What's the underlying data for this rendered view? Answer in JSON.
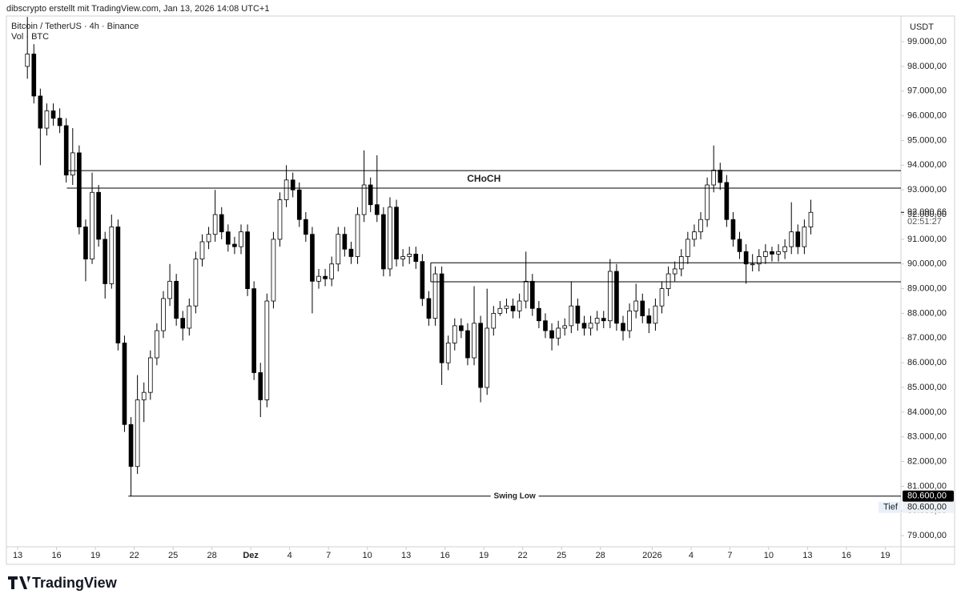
{
  "header": {
    "caption": "dibscrypto erstellt mit TradingView.com, Jan 13, 2026 14:08 UTC+1",
    "symbol": "Bitcoin / TetherUS · 4h · Binance",
    "volume": "Vol · BTC",
    "brand": "TradingView"
  },
  "chart_data": {
    "type": "candlestick",
    "currency": "USDT",
    "up_color": "#ffffff",
    "down_color": "#000000",
    "wick_color": "#000000",
    "grid": false,
    "xlim": [
      -0.87,
      68.21
    ],
    "ylim": [
      78550,
      100040
    ],
    "xticks": [
      {
        "value": 0,
        "label": "13"
      },
      {
        "value": 3,
        "label": "16"
      },
      {
        "value": 6,
        "label": "19"
      },
      {
        "value": 9,
        "label": "22"
      },
      {
        "value": 12,
        "label": "25"
      },
      {
        "value": 15,
        "label": "28"
      },
      {
        "value": 18,
        "label": "Dez"
      },
      {
        "value": 21,
        "label": "4"
      },
      {
        "value": 24,
        "label": "7"
      },
      {
        "value": 27,
        "label": "10"
      },
      {
        "value": 30,
        "label": "13"
      },
      {
        "value": 33,
        "label": "16"
      },
      {
        "value": 36,
        "label": "19"
      },
      {
        "value": 39,
        "label": "22"
      },
      {
        "value": 42,
        "label": "25"
      },
      {
        "value": 45,
        "label": "28"
      },
      {
        "value": 49,
        "label": "2026"
      },
      {
        "value": 52,
        "label": "4"
      },
      {
        "value": 55,
        "label": "7"
      },
      {
        "value": 58,
        "label": "10"
      },
      {
        "value": 61,
        "label": "13"
      },
      {
        "value": 64,
        "label": "16"
      },
      {
        "value": 67,
        "label": "19"
      }
    ],
    "yticks": [
      {
        "value": 79000,
        "label": "79.000,00"
      },
      {
        "value": 80000,
        "label": "80.000,00"
      },
      {
        "value": 81000,
        "label": "81.000,00"
      },
      {
        "value": 82000,
        "label": "82.000,00"
      },
      {
        "value": 83000,
        "label": "83.000,00"
      },
      {
        "value": 84000,
        "label": "84.000,00"
      },
      {
        "value": 85000,
        "label": "85.000,00"
      },
      {
        "value": 86000,
        "label": "86.000,00"
      },
      {
        "value": 87000,
        "label": "87.000,00"
      },
      {
        "value": 88000,
        "label": "88.000,00"
      },
      {
        "value": 89000,
        "label": "89.000,00"
      },
      {
        "value": 90000,
        "label": "90.000,00"
      },
      {
        "value": 91000,
        "label": "91.000,00"
      },
      {
        "value": 92000,
        "label": "92.000,00"
      },
      {
        "value": 93000,
        "label": "93.000,00"
      },
      {
        "value": 94000,
        "label": "94.000,00"
      },
      {
        "value": 95000,
        "label": "95.000,00"
      },
      {
        "value": 96000,
        "label": "96.000,00"
      },
      {
        "value": 97000,
        "label": "97.000,00"
      },
      {
        "value": 98000,
        "label": "98.000,00"
      },
      {
        "value": 99000,
        "label": "99.000,00"
      }
    ],
    "x": [
      0.75,
      1.25,
      1.75,
      2.25,
      2.75,
      3.25,
      3.75,
      4.25,
      4.75,
      5.25,
      5.75,
      6.25,
      6.75,
      7.25,
      7.75,
      8.25,
      8.75,
      9.25,
      9.75,
      10.25,
      10.75,
      11.25,
      11.75,
      12.25,
      12.75,
      13.25,
      13.75,
      14.25,
      14.75,
      15.25,
      15.75,
      16.25,
      16.75,
      17.25,
      17.75,
      18.25,
      18.75,
      19.25,
      19.75,
      20.25,
      20.75,
      21.25,
      21.75,
      22.25,
      22.75,
      23.25,
      23.75,
      24.25,
      24.75,
      25.25,
      25.75,
      26.25,
      26.75,
      27.25,
      27.75,
      28.25,
      28.75,
      29.25,
      29.75,
      30.25,
      30.75,
      31.25,
      31.75,
      32.25,
      32.75,
      33.25,
      33.75,
      34.25,
      34.75,
      35.25,
      35.75,
      36.25,
      36.75,
      37.25,
      37.75,
      38.25,
      38.75,
      39.25,
      39.75,
      40.25,
      40.75,
      41.25,
      41.75,
      42.25,
      42.75,
      43.25,
      43.75,
      44.25,
      44.75,
      45.25,
      45.75,
      46.25,
      46.75,
      47.25,
      47.75,
      48.25,
      48.75,
      49.25,
      49.75,
      50.25,
      50.75,
      51.25,
      51.75,
      52.25,
      52.75,
      53.25,
      53.75,
      54.25,
      54.75,
      55.25,
      55.75,
      56.25,
      56.75,
      57.25,
      57.75,
      58.25,
      58.75,
      59.25,
      59.75,
      60.25,
      60.75,
      61.25
    ],
    "open": [
      98000,
      98500,
      96800,
      95500,
      96200,
      95900,
      95600,
      93600,
      94500,
      91500,
      90200,
      92900,
      91000,
      89200,
      91500,
      86800,
      83500,
      81800,
      84500,
      84800,
      86200,
      87300,
      88600,
      89300,
      87800,
      87400,
      88300,
      90200,
      90900,
      91200,
      92000,
      91300,
      90800,
      90700,
      91300,
      89000,
      85600,
      84500,
      88500,
      91000,
      92600,
      93400,
      93000,
      91800,
      91200,
      89300,
      89500,
      89400,
      90000,
      91200,
      90600,
      90300,
      92000,
      93200,
      92400,
      92000,
      89800,
      92300,
      90200,
      90300,
      90400,
      90100,
      88600,
      87800,
      89600,
      86000,
      86800,
      87500,
      87300,
      86200,
      87600,
      85000,
      87400,
      88000,
      88200,
      88300,
      88100,
      88500,
      89300,
      88200,
      87700,
      87300,
      87000,
      87400,
      87500,
      88300,
      87600,
      87400,
      87600,
      87800,
      87700,
      89700,
      87600,
      87300,
      88100,
      88500,
      87900,
      87600,
      88300,
      89000,
      89600,
      89800,
      90300,
      91000,
      91300,
      91800,
      93200,
      93800,
      93300,
      91800,
      91000,
      90500,
      90000,
      90000,
      90300,
      90500,
      90400,
      90500,
      90700,
      91300,
      90700,
      91500
    ],
    "high": [
      100000,
      98900,
      97100,
      96500,
      96500,
      96300,
      95900,
      95500,
      94800,
      91800,
      93700,
      93200,
      91300,
      92000,
      91800,
      87100,
      83800,
      85500,
      85200,
      86500,
      87600,
      88900,
      90000,
      89600,
      88100,
      88600,
      90500,
      91200,
      91500,
      93000,
      92300,
      91600,
      91100,
      91600,
      91600,
      89300,
      86000,
      88800,
      91300,
      92900,
      94000,
      93700,
      93300,
      92100,
      91500,
      89800,
      89800,
      90300,
      91500,
      91500,
      90900,
      92300,
      94600,
      93500,
      94400,
      92300,
      92700,
      92600,
      90600,
      90700,
      90700,
      90400,
      88900,
      89900,
      89900,
      87100,
      87800,
      87800,
      87600,
      89100,
      87900,
      89000,
      88300,
      88500,
      88600,
      88600,
      88800,
      90500,
      89600,
      88500,
      88000,
      87600,
      87700,
      87800,
      89300,
      88600,
      87900,
      87900,
      88100,
      88100,
      90200,
      90000,
      87900,
      88400,
      89200,
      88800,
      88200,
      88600,
      89300,
      89900,
      90100,
      90600,
      91300,
      91600,
      92100,
      93500,
      94800,
      94100,
      93600,
      92100,
      91300,
      90800,
      90400,
      90600,
      90800,
      90700,
      90800,
      91000,
      92500,
      91600,
      91800,
      92600
    ],
    "low": [
      97500,
      96500,
      94000,
      95200,
      95600,
      95300,
      93300,
      93200,
      91200,
      89300,
      90000,
      90700,
      88600,
      89000,
      86500,
      83200,
      80600,
      81500,
      83600,
      84500,
      85900,
      87000,
      88300,
      87500,
      86900,
      87100,
      88000,
      89900,
      90600,
      90900,
      91000,
      90500,
      90400,
      90400,
      88700,
      85300,
      83800,
      84200,
      88200,
      90700,
      92300,
      92700,
      91500,
      90900,
      88000,
      89000,
      89100,
      89100,
      89700,
      90300,
      90000,
      90000,
      91700,
      92100,
      91700,
      89500,
      89500,
      89900,
      89900,
      90000,
      89800,
      88300,
      87500,
      87500,
      85100,
      85700,
      86500,
      87000,
      85900,
      85900,
      84400,
      84700,
      87100,
      87900,
      88000,
      87800,
      87800,
      88200,
      87900,
      87400,
      87000,
      86500,
      86700,
      87100,
      87200,
      87300,
      87100,
      87100,
      87300,
      87400,
      87400,
      87300,
      86900,
      87000,
      87800,
      87600,
      87200,
      87300,
      88000,
      88700,
      89300,
      89500,
      90000,
      90700,
      91000,
      91500,
      92900,
      93000,
      91500,
      90700,
      90200,
      89200,
      89700,
      89700,
      90000,
      90100,
      90100,
      90200,
      90400,
      90400,
      90400,
      91200
    ],
    "close": [
      98500,
      96800,
      95500,
      96200,
      95900,
      95600,
      93600,
      94500,
      91500,
      90200,
      92900,
      91000,
      89200,
      91500,
      86800,
      83500,
      81800,
      84500,
      84800,
      86200,
      87300,
      88600,
      89300,
      87800,
      87400,
      88300,
      90200,
      90900,
      91200,
      92000,
      91300,
      90800,
      90700,
      91300,
      89000,
      85600,
      84500,
      88500,
      91000,
      92600,
      93400,
      93000,
      91800,
      91200,
      89300,
      89500,
      89400,
      90000,
      91200,
      90600,
      90300,
      92000,
      93200,
      92400,
      92000,
      89800,
      92300,
      90200,
      90300,
      90400,
      90100,
      88600,
      87800,
      89600,
      86000,
      86800,
      87500,
      87300,
      86200,
      87600,
      85000,
      87400,
      88000,
      88200,
      88300,
      88100,
      88500,
      89300,
      88200,
      87700,
      87300,
      87000,
      87400,
      87500,
      88300,
      87600,
      87400,
      87600,
      87800,
      87700,
      89700,
      87600,
      87300,
      88100,
      88500,
      87900,
      87600,
      88300,
      89000,
      89600,
      89800,
      90300,
      91000,
      91300,
      91800,
      93200,
      93800,
      93300,
      91800,
      91000,
      90500,
      90000,
      90000,
      90300,
      90500,
      90400,
      90500,
      90700,
      91300,
      90700,
      91500,
      92090.66
    ],
    "levels": [
      {
        "value": 93780,
        "x0": 3.8
      },
      {
        "value": 93070,
        "x0": 3.8,
        "label": "CHoCH"
      },
      {
        "value": 90050,
        "x0": 31.9
      },
      {
        "value": 89280,
        "x0": 31.9
      },
      {
        "value": 80600,
        "x0": 8.55,
        "label": "Swing Low",
        "value_label": "80.600,00"
      }
    ],
    "last_price": {
      "value": 92090.66,
      "label": "92.090,66"
    },
    "countdown": "02:51:27",
    "low_marker": {
      "label": "Tief",
      "value": 80600,
      "value_label": "80.600,00"
    }
  }
}
